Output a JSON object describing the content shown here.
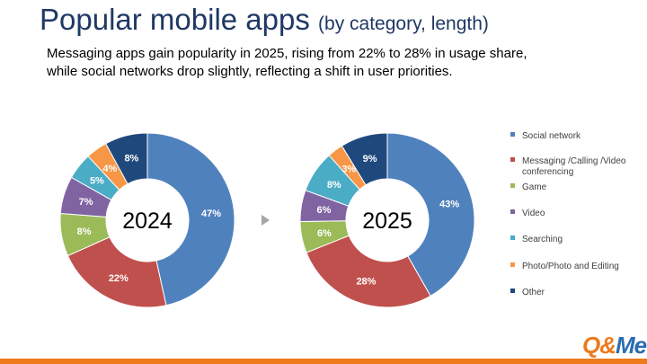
{
  "header": {
    "title_main": "Popular mobile apps",
    "title_suffix": "(by category, length)",
    "subtitle_line1": "Messaging apps gain popularity in 2025, rising from 22% to 28% in usage share,",
    "subtitle_line2": "while social networks drop slightly, reflecting a shift in user priorities."
  },
  "logo": {
    "part1": "Q&",
    "part2": "Me"
  },
  "chart_data": {
    "type": "donut",
    "categories": [
      "Social network",
      "Messaging /Calling /Video conferencing",
      "Game",
      "Video",
      "Searching",
      "Photo/Photo and Editing",
      "Other"
    ],
    "colors": [
      "#4f81bd",
      "#c0504d",
      "#9bbb59",
      "#8064a2",
      "#4bacc6",
      "#f79646",
      "#1f497d"
    ],
    "series": [
      {
        "name": "2024",
        "values": [
          47,
          22,
          8,
          7,
          5,
          4,
          8
        ]
      },
      {
        "name": "2025",
        "values": [
          43,
          28,
          6,
          6,
          8,
          3,
          9
        ]
      }
    ],
    "value_suffix": "%",
    "legend_position": "right",
    "legend_labels": [
      [
        "Social network"
      ],
      [
        "Messaging /Calling /Video",
        "conferencing"
      ],
      [
        "Game"
      ],
      [
        "Video"
      ],
      [
        "Searching"
      ],
      [
        "Photo/Photo and Editing"
      ],
      [
        "Other"
      ]
    ]
  }
}
